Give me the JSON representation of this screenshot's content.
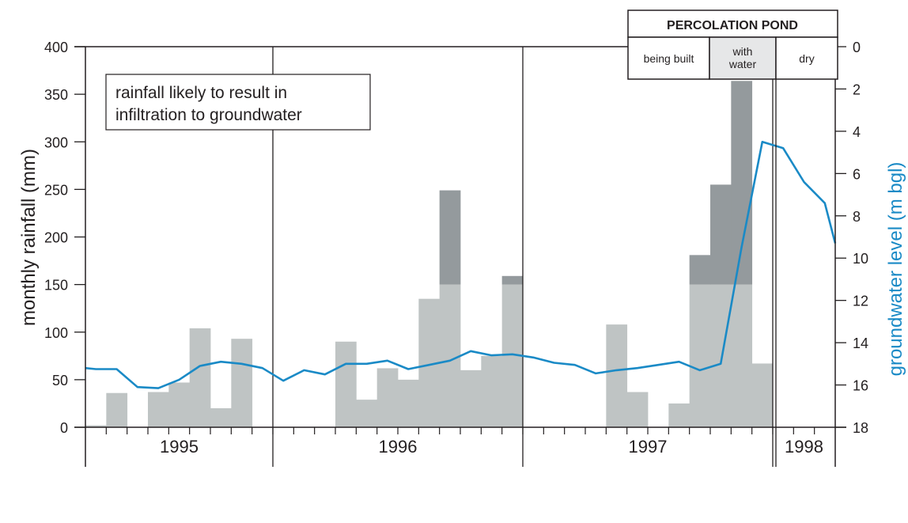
{
  "chart_data": {
    "type": "bar",
    "left_axis": {
      "label": "monthly rainfall (mm)",
      "ylim": [
        0,
        400
      ],
      "ticks": [
        "0",
        "50",
        "100",
        "150",
        "200",
        "250",
        "300",
        "350",
        "400"
      ]
    },
    "right_axis": {
      "label": "groundwater level (m bgl)",
      "ylim": [
        0,
        18
      ],
      "inverted": true,
      "ticks": [
        "0",
        "2",
        "4",
        "6",
        "8",
        "10",
        "12",
        "14",
        "16",
        "18"
      ]
    },
    "years": [
      {
        "label": "1995",
        "start_month": 0,
        "end_month": 9
      },
      {
        "label": "1996",
        "start_month": 9,
        "end_month": 21
      },
      {
        "label": "1997",
        "start_month": 21,
        "end_month": 33
      },
      {
        "label": "1998",
        "start_month": 33,
        "end_month": 36
      }
    ],
    "month_count": 36,
    "annotation": {
      "line1": "rainfall likely to result in",
      "line2": "infiltration to groundwater"
    },
    "infiltration_threshold_mm": 150,
    "colors": {
      "rain_bar": "#bfc4c4",
      "infiltration_bar": "#949a9d",
      "groundwater_line": "#1a8ac6",
      "axes": "#231f20"
    },
    "rainfall_bars": [
      {
        "month": 0,
        "value": 2
      },
      {
        "month": 1,
        "value": 36
      },
      {
        "month": 3,
        "value": 37
      },
      {
        "month": 4,
        "value": 47
      },
      {
        "month": 5,
        "value": 104
      },
      {
        "month": 6,
        "value": 20
      },
      {
        "month": 7,
        "value": 93
      },
      {
        "month": 12,
        "value": 90
      },
      {
        "month": 13,
        "value": 29
      },
      {
        "month": 14,
        "value": 62
      },
      {
        "month": 15,
        "value": 50
      },
      {
        "month": 16,
        "value": 135
      },
      {
        "month": 17,
        "value": 249
      },
      {
        "month": 18,
        "value": 60
      },
      {
        "month": 19,
        "value": 75
      },
      {
        "month": 20,
        "value": 159
      },
      {
        "month": 25,
        "value": 108
      },
      {
        "month": 26,
        "value": 37
      },
      {
        "month": 28,
        "value": 25
      },
      {
        "month": 29,
        "value": 181
      },
      {
        "month": 30,
        "value": 255
      },
      {
        "month": 31,
        "value": 364
      },
      {
        "month": 32,
        "value": 67
      }
    ],
    "groundwater_series": {
      "name": "groundwater level (m bgl)",
      "points": [
        [
          0,
          15.2
        ],
        [
          0.5,
          15.25
        ],
        [
          1.5,
          15.25
        ],
        [
          2.5,
          16.1
        ],
        [
          3.5,
          16.15
        ],
        [
          4.5,
          15.75
        ],
        [
          5.5,
          15.1
        ],
        [
          6.5,
          14.9
        ],
        [
          7.5,
          15.0
        ],
        [
          8.5,
          15.2
        ],
        [
          9.5,
          15.8
        ],
        [
          10.5,
          15.3
        ],
        [
          11.5,
          15.5
        ],
        [
          12.5,
          15.0
        ],
        [
          13.5,
          15.0
        ],
        [
          14.5,
          14.85
        ],
        [
          15.5,
          15.25
        ],
        [
          16.5,
          15.05
        ],
        [
          17.5,
          14.85
        ],
        [
          18.5,
          14.4
        ],
        [
          19.5,
          14.6
        ],
        [
          20.5,
          14.55
        ],
        [
          21.5,
          14.7
        ],
        [
          22.5,
          14.95
        ],
        [
          23.5,
          15.05
        ],
        [
          24.5,
          15.45
        ],
        [
          25.5,
          15.3
        ],
        [
          26.5,
          15.2
        ],
        [
          27.5,
          15.05
        ],
        [
          28.5,
          14.9
        ],
        [
          29.5,
          15.3
        ],
        [
          30.5,
          15.0
        ],
        [
          31.5,
          9.5
        ],
        [
          32.5,
          4.5
        ],
        [
          33.5,
          4.8
        ],
        [
          34.5,
          6.4
        ],
        [
          35.5,
          7.4
        ],
        [
          36,
          9.3
        ]
      ]
    },
    "percolation_pond": {
      "title": "PERCOLATION POND",
      "phases": [
        {
          "label_lines": [
            "being built"
          ],
          "shade": "#ffffff"
        },
        {
          "label_lines": [
            "with",
            "water"
          ],
          "shade": "#e6e7e8"
        },
        {
          "label_lines": [
            "dry"
          ],
          "shade": "#ffffff"
        }
      ]
    }
  }
}
